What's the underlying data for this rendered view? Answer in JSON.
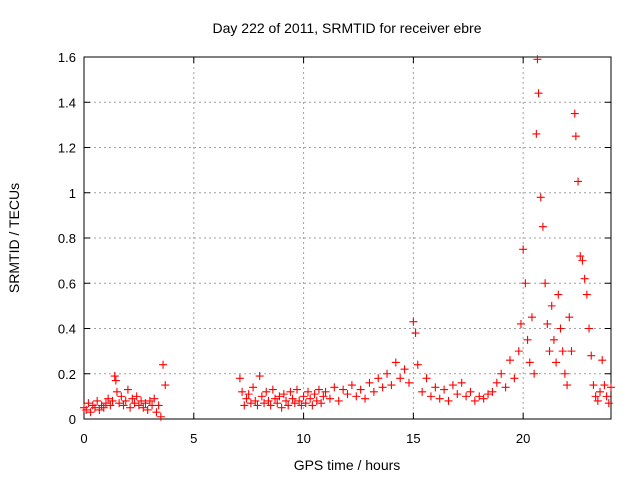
{
  "chart_data": {
    "type": "scatter",
    "title": "Day 222 of 2011, SRMTID for receiver ebre",
    "xlabel": "GPS time / hours",
    "ylabel": "SRMTID / TECUs",
    "xlim": [
      0,
      24
    ],
    "ylim": [
      0,
      1.6
    ],
    "xticks": [
      0,
      5,
      10,
      15,
      20
    ],
    "yticks": [
      0,
      0.2,
      0.4,
      0.6,
      0.8,
      1,
      1.2,
      1.4,
      1.6
    ],
    "xtick_labels": [
      "0",
      "5",
      "10",
      "15",
      "20"
    ],
    "ytick_labels": [
      "0",
      "0.2",
      "0.4",
      "0.6",
      "0.8",
      "1",
      "1.2",
      "1.4",
      "1.6"
    ],
    "grid": true,
    "marker": "+",
    "color": "#ff0000",
    "series": [
      {
        "name": "SRMTID",
        "points": [
          [
            0.0,
            0.05
          ],
          [
            0.1,
            0.04
          ],
          [
            0.2,
            0.07
          ],
          [
            0.3,
            0.03
          ],
          [
            0.4,
            0.06
          ],
          [
            0.5,
            0.05
          ],
          [
            0.6,
            0.08
          ],
          [
            0.7,
            0.04
          ],
          [
            0.8,
            0.06
          ],
          [
            0.9,
            0.05
          ],
          [
            1.0,
            0.07
          ],
          [
            1.1,
            0.09
          ],
          [
            1.2,
            0.06
          ],
          [
            1.3,
            0.08
          ],
          [
            1.4,
            0.19
          ],
          [
            1.45,
            0.17
          ],
          [
            1.5,
            0.12
          ],
          [
            1.6,
            0.07
          ],
          [
            1.7,
            0.1
          ],
          [
            1.8,
            0.06
          ],
          [
            1.9,
            0.08
          ],
          [
            2.0,
            0.13
          ],
          [
            2.1,
            0.05
          ],
          [
            2.2,
            0.09
          ],
          [
            2.3,
            0.07
          ],
          [
            2.4,
            0.1
          ],
          [
            2.5,
            0.06
          ],
          [
            2.6,
            0.08
          ],
          [
            2.7,
            0.05
          ],
          [
            2.8,
            0.07
          ],
          [
            2.9,
            0.04
          ],
          [
            3.0,
            0.08
          ],
          [
            3.1,
            0.06
          ],
          [
            3.2,
            0.09
          ],
          [
            3.3,
            0.03
          ],
          [
            3.4,
            0.06
          ],
          [
            3.5,
            0.01
          ],
          [
            3.6,
            0.24
          ],
          [
            3.7,
            0.15
          ],
          [
            7.1,
            0.18
          ],
          [
            7.2,
            0.12
          ],
          [
            7.3,
            0.06
          ],
          [
            7.4,
            0.09
          ],
          [
            7.5,
            0.11
          ],
          [
            7.6,
            0.07
          ],
          [
            7.7,
            0.14
          ],
          [
            7.8,
            0.08
          ],
          [
            7.9,
            0.06
          ],
          [
            8.0,
            0.19
          ],
          [
            8.1,
            0.1
          ],
          [
            8.2,
            0.07
          ],
          [
            8.3,
            0.12
          ],
          [
            8.4,
            0.08
          ],
          [
            8.5,
            0.06
          ],
          [
            8.6,
            0.13
          ],
          [
            8.7,
            0.09
          ],
          [
            8.8,
            0.07
          ],
          [
            8.9,
            0.1
          ],
          [
            9.0,
            0.05
          ],
          [
            9.1,
            0.11
          ],
          [
            9.2,
            0.08
          ],
          [
            9.3,
            0.06
          ],
          [
            9.4,
            0.12
          ],
          [
            9.5,
            0.09
          ],
          [
            9.6,
            0.07
          ],
          [
            9.7,
            0.13
          ],
          [
            9.8,
            0.08
          ],
          [
            9.9,
            0.06
          ],
          [
            10.0,
            0.1
          ],
          [
            10.1,
            0.07
          ],
          [
            10.2,
            0.12
          ],
          [
            10.3,
            0.09
          ],
          [
            10.4,
            0.06
          ],
          [
            10.5,
            0.11
          ],
          [
            10.6,
            0.08
          ],
          [
            10.7,
            0.13
          ],
          [
            10.8,
            0.07
          ],
          [
            10.9,
            0.1
          ],
          [
            11.0,
            0.12
          ],
          [
            11.2,
            0.09
          ],
          [
            11.4,
            0.14
          ],
          [
            11.6,
            0.08
          ],
          [
            11.8,
            0.13
          ],
          [
            12.0,
            0.11
          ],
          [
            12.2,
            0.15
          ],
          [
            12.4,
            0.1
          ],
          [
            12.6,
            0.13
          ],
          [
            12.8,
            0.09
          ],
          [
            13.0,
            0.16
          ],
          [
            13.2,
            0.12
          ],
          [
            13.4,
            0.18
          ],
          [
            13.6,
            0.14
          ],
          [
            13.8,
            0.2
          ],
          [
            14.0,
            0.15
          ],
          [
            14.2,
            0.25
          ],
          [
            14.4,
            0.18
          ],
          [
            14.6,
            0.22
          ],
          [
            14.8,
            0.16
          ],
          [
            15.0,
            0.43
          ],
          [
            15.1,
            0.38
          ],
          [
            15.2,
            0.24
          ],
          [
            15.4,
            0.12
          ],
          [
            15.6,
            0.18
          ],
          [
            15.8,
            0.1
          ],
          [
            16.0,
            0.14
          ],
          [
            16.2,
            0.09
          ],
          [
            16.4,
            0.13
          ],
          [
            16.6,
            0.08
          ],
          [
            16.8,
            0.15
          ],
          [
            17.0,
            0.11
          ],
          [
            17.2,
            0.16
          ],
          [
            17.4,
            0.1
          ],
          [
            17.6,
            0.12
          ],
          [
            17.8,
            0.08
          ],
          [
            18.0,
            0.1
          ],
          [
            18.2,
            0.09
          ],
          [
            18.4,
            0.11
          ],
          [
            18.6,
            0.12
          ],
          [
            18.8,
            0.16
          ],
          [
            19.0,
            0.2
          ],
          [
            19.2,
            0.14
          ],
          [
            19.4,
            0.26
          ],
          [
            19.6,
            0.18
          ],
          [
            19.8,
            0.3
          ],
          [
            19.9,
            0.42
          ],
          [
            20.0,
            0.75
          ],
          [
            20.1,
            0.6
          ],
          [
            20.2,
            0.35
          ],
          [
            20.3,
            0.25
          ],
          [
            20.4,
            0.45
          ],
          [
            20.5,
            0.2
          ],
          [
            20.6,
            1.26
          ],
          [
            20.65,
            1.59
          ],
          [
            20.7,
            1.44
          ],
          [
            20.8,
            0.98
          ],
          [
            20.9,
            0.85
          ],
          [
            21.0,
            0.6
          ],
          [
            21.1,
            0.42
          ],
          [
            21.2,
            0.3
          ],
          [
            21.3,
            0.5
          ],
          [
            21.4,
            0.35
          ],
          [
            21.5,
            0.25
          ],
          [
            21.6,
            0.55
          ],
          [
            21.7,
            0.4
          ],
          [
            21.8,
            0.3
          ],
          [
            21.9,
            0.2
          ],
          [
            22.0,
            0.15
          ],
          [
            22.1,
            0.45
          ],
          [
            22.2,
            0.3
          ],
          [
            22.35,
            1.35
          ],
          [
            22.4,
            1.25
          ],
          [
            22.5,
            1.05
          ],
          [
            22.6,
            0.72
          ],
          [
            22.7,
            0.7
          ],
          [
            22.8,
            0.62
          ],
          [
            22.9,
            0.55
          ],
          [
            23.0,
            0.4
          ],
          [
            23.1,
            0.28
          ],
          [
            23.2,
            0.15
          ],
          [
            23.3,
            0.1
          ],
          [
            23.4,
            0.08
          ],
          [
            23.5,
            0.12
          ],
          [
            23.6,
            0.26
          ],
          [
            23.7,
            0.15
          ],
          [
            23.8,
            0.1
          ],
          [
            23.9,
            0.07
          ],
          [
            24.0,
            0.14
          ]
        ]
      }
    ]
  }
}
